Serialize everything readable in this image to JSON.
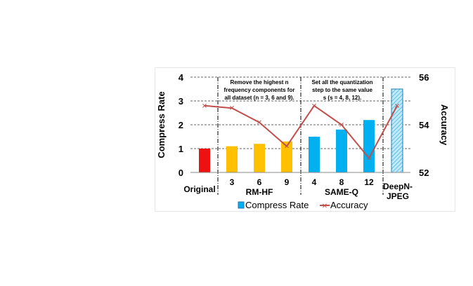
{
  "chart_data": {
    "type": "bar",
    "categories": [
      "Original",
      "3",
      "6",
      "9",
      "4",
      "8",
      "12",
      "DeepN-JPEG"
    ],
    "groups": [
      {
        "label": "RM-HF",
        "categories": [
          "3",
          "6",
          "9"
        ]
      },
      {
        "label": "SAME-Q",
        "categories": [
          "4",
          "8",
          "12"
        ]
      }
    ],
    "series": [
      {
        "name": "Compress Rate",
        "type": "bar",
        "axis": "left",
        "values": [
          1.0,
          1.1,
          1.2,
          1.3,
          1.5,
          1.8,
          2.2,
          3.5
        ],
        "colors": [
          "#ee1111",
          "#ffc000",
          "#ffc000",
          "#ffc000",
          "#00b0f0",
          "#00b0f0",
          "#00b0f0",
          "#bfe9f9"
        ],
        "hatched": [
          false,
          false,
          false,
          false,
          false,
          false,
          false,
          true
        ]
      },
      {
        "name": "Accuracy",
        "type": "line",
        "axis": "right",
        "values": [
          54.8,
          54.7,
          54.1,
          53.1,
          54.8,
          54.0,
          52.6,
          54.8
        ],
        "color": "#c0504d"
      }
    ],
    "ylabel": "Compress Rate",
    "ylim": [
      0,
      4
    ],
    "yticks": [
      0,
      1,
      2,
      3,
      4
    ],
    "y2label": "Accuracy",
    "y2lim": [
      52,
      56
    ],
    "y2ticks": [
      52,
      54,
      56
    ],
    "grid": "horizontal dashed",
    "legend": "bottom",
    "annotations": [
      {
        "lines": [
          "Remove the highest n",
          "frequency components for",
          "all dataset (n = 3, 6 and 9)."
        ]
      },
      {
        "lines": [
          "Set all the quantization",
          "step to the same value",
          "s (s = 4, 8, 12)."
        ]
      }
    ]
  }
}
